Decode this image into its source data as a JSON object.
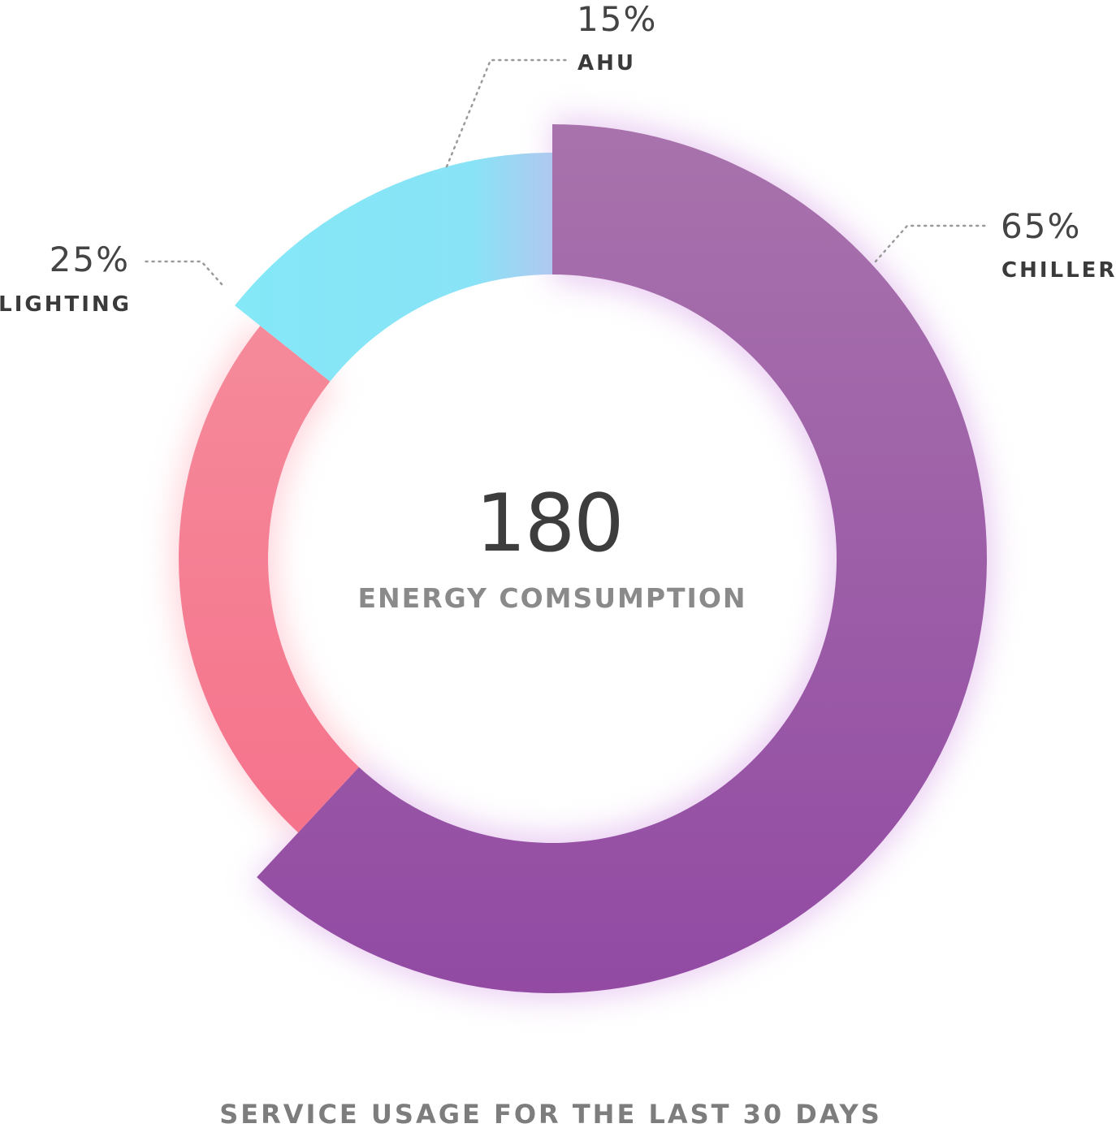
{
  "chart_data": {
    "type": "pie",
    "variant": "donut",
    "center_value": "180",
    "center_label": "ENERGY COMSUMPTION",
    "caption": "SERVICE USAGE FOR THE LAST 30 DAYS",
    "slices": [
      {
        "name": "CHILLER",
        "label": "65%",
        "value": 65,
        "color": "#9a4fa6"
      },
      {
        "name": "LIGHTING",
        "label": "25%",
        "value": 25,
        "color": "#f5798f"
      },
      {
        "name": "AHU",
        "label": "15%",
        "value": 15,
        "color": "#86e6f6"
      }
    ]
  }
}
